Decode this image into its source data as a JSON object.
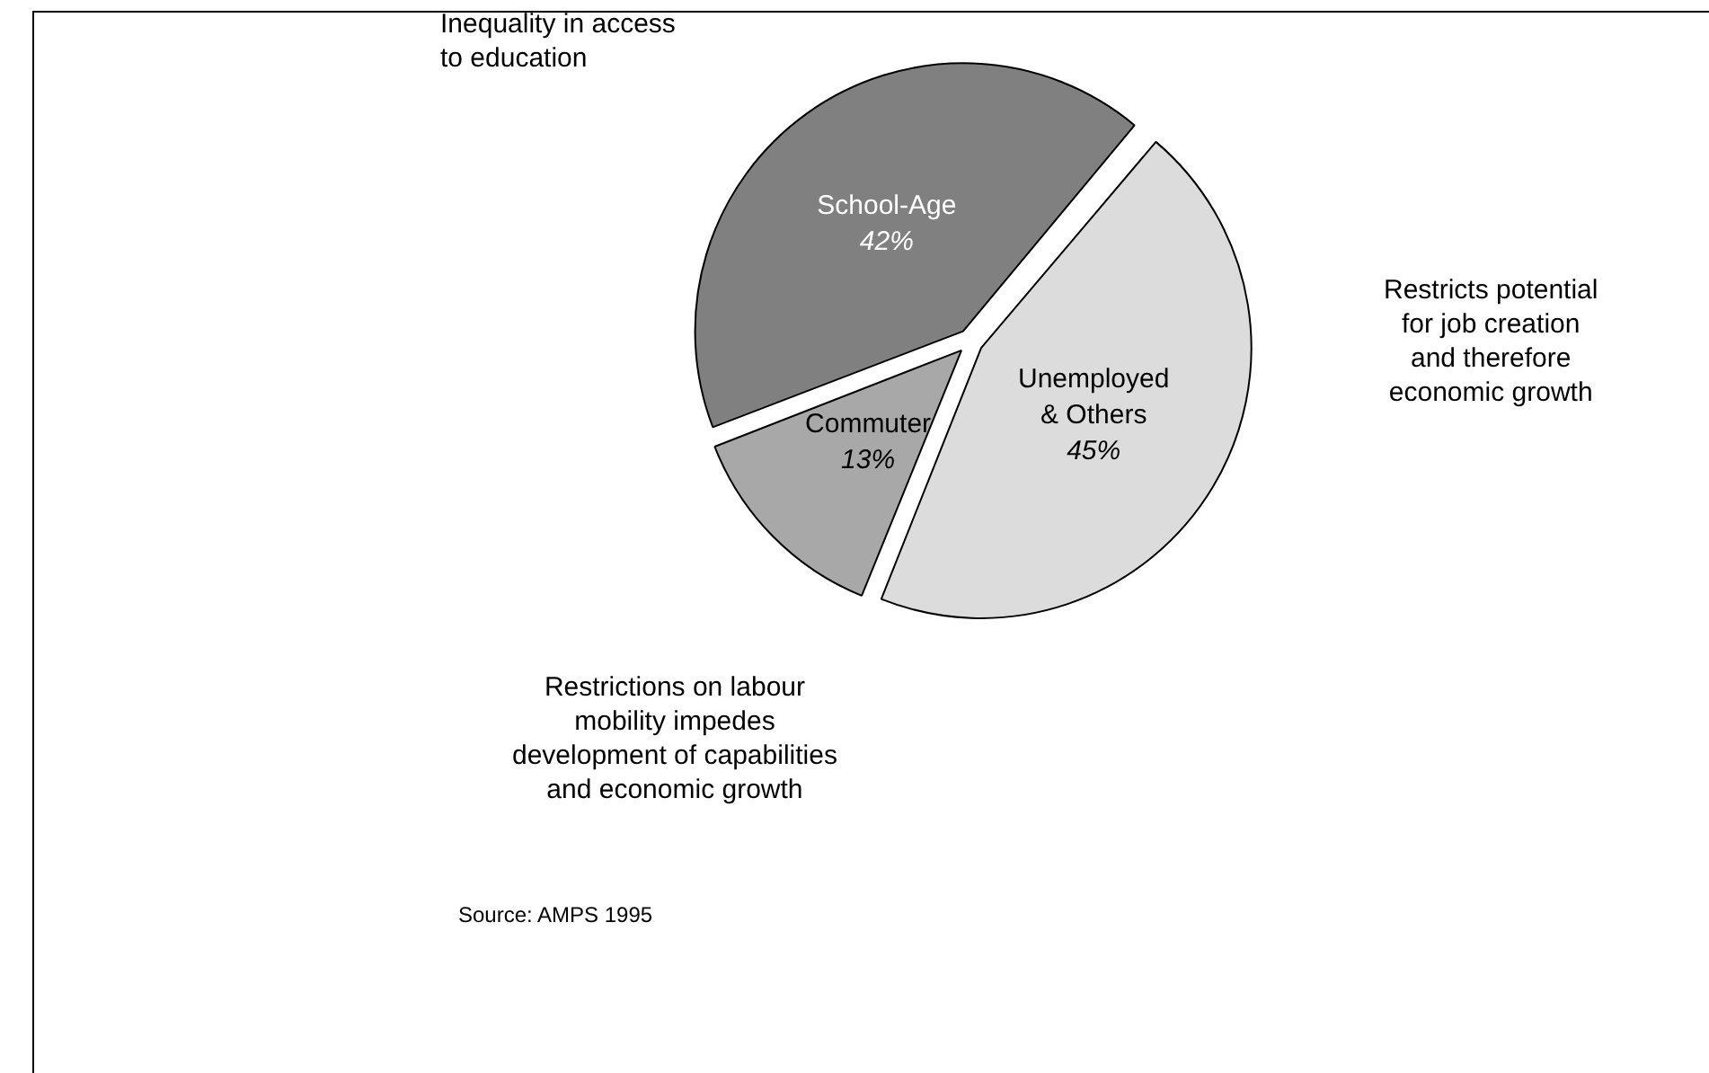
{
  "chart_data": {
    "type": "pie",
    "categories": [
      "Unemployed & Others",
      "Commuter",
      "School-Age"
    ],
    "values": [
      45,
      13,
      42
    ],
    "colors": [
      "#dcdcdc",
      "#a8a8a8",
      "#808080"
    ],
    "value_labels": [
      "45%",
      "13%",
      "42%"
    ],
    "legend": false,
    "annotations": [
      "Inequality in access\nto education",
      "Restricts potential\nfor job creation\nand therefore\neconomic growth",
      "Restrictions on labour\nmobility impedes\ndevelopment of capabilities\nand economic growth",
      "Source: AMPS 1995"
    ]
  }
}
